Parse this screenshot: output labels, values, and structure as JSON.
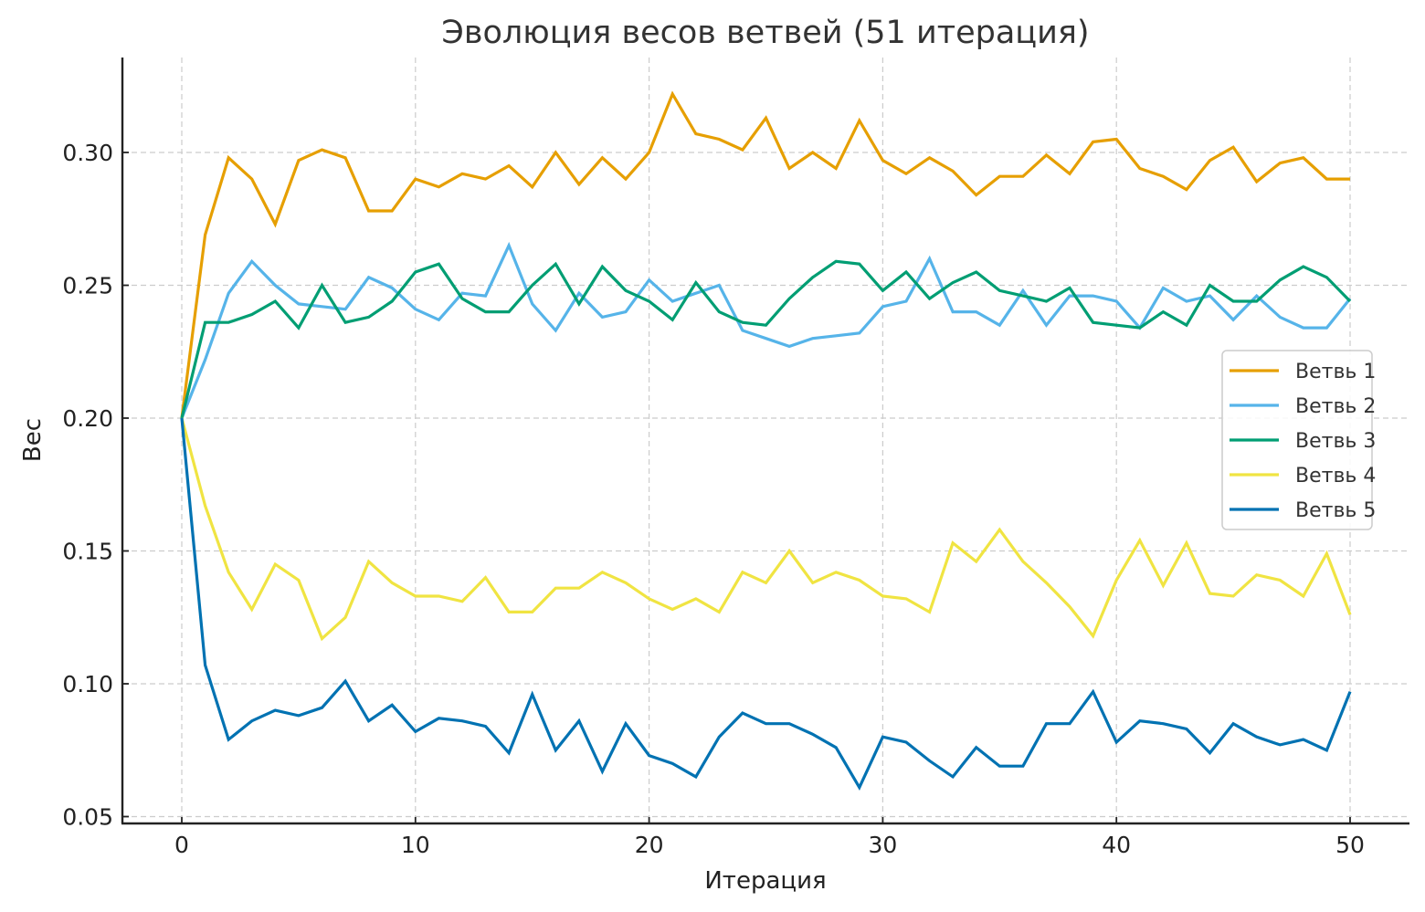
{
  "chart_data": {
    "type": "line",
    "title": "Эволюция весов ветвей (51 итерация)",
    "xlabel": "Итерация",
    "ylabel": "Вес",
    "xlim": [
      -2.5,
      52.5
    ],
    "ylim": [
      0.048,
      0.331
    ],
    "xticks": [
      0,
      10,
      20,
      30,
      40,
      50
    ],
    "xtick_labels": [
      "0",
      "10",
      "20",
      "30",
      "40",
      "50"
    ],
    "yticks": [
      0.05,
      0.1,
      0.15,
      0.2,
      0.25,
      0.3
    ],
    "ytick_labels": [
      "0.05",
      "0.10",
      "0.15",
      "0.20",
      "0.25",
      "0.30"
    ],
    "grid": true,
    "legend_position": "center right",
    "x": [
      0,
      1,
      2,
      3,
      4,
      5,
      6,
      7,
      8,
      9,
      10,
      11,
      12,
      13,
      14,
      15,
      16,
      17,
      18,
      19,
      20,
      21,
      22,
      23,
      24,
      25,
      26,
      27,
      28,
      29,
      30,
      31,
      32,
      33,
      34,
      35,
      36,
      37,
      38,
      39,
      40,
      41,
      42,
      43,
      44,
      45,
      46,
      47,
      48,
      49,
      50
    ],
    "series": [
      {
        "name": "Ветвь 1",
        "color": "#E69F00",
        "values": [
          0.2,
          0.269,
          0.298,
          0.29,
          0.273,
          0.297,
          0.301,
          0.298,
          0.278,
          0.278,
          0.29,
          0.287,
          0.292,
          0.29,
          0.295,
          0.287,
          0.3,
          0.288,
          0.298,
          0.29,
          0.3,
          0.322,
          0.307,
          0.305,
          0.301,
          0.313,
          0.294,
          0.3,
          0.294,
          0.312,
          0.297,
          0.292,
          0.298,
          0.293,
          0.284,
          0.291,
          0.291,
          0.299,
          0.292,
          0.304,
          0.305,
          0.294,
          0.291,
          0.286,
          0.297,
          0.302,
          0.289,
          0.296,
          0.298,
          0.29,
          0.29
        ]
      },
      {
        "name": "Ветвь 2",
        "color": "#56B4E9",
        "values": [
          0.2,
          0.222,
          0.247,
          0.259,
          0.25,
          0.243,
          0.242,
          0.241,
          0.253,
          0.249,
          0.241,
          0.237,
          0.247,
          0.246,
          0.265,
          0.243,
          0.233,
          0.247,
          0.238,
          0.24,
          0.252,
          0.244,
          0.247,
          0.25,
          0.233,
          0.23,
          0.227,
          0.23,
          0.231,
          0.232,
          0.242,
          0.244,
          0.26,
          0.24,
          0.24,
          0.235,
          0.248,
          0.235,
          0.246,
          0.246,
          0.244,
          0.234,
          0.249,
          0.244,
          0.246,
          0.237,
          0.246,
          0.238,
          0.234,
          0.234,
          0.245
        ]
      },
      {
        "name": "Ветвь 3",
        "color": "#009E73",
        "values": [
          0.2,
          0.236,
          0.236,
          0.239,
          0.244,
          0.234,
          0.25,
          0.236,
          0.238,
          0.244,
          0.255,
          0.258,
          0.245,
          0.24,
          0.24,
          0.25,
          0.258,
          0.243,
          0.257,
          0.248,
          0.244,
          0.237,
          0.251,
          0.24,
          0.236,
          0.235,
          0.245,
          0.253,
          0.259,
          0.258,
          0.248,
          0.255,
          0.245,
          0.251,
          0.255,
          0.248,
          0.246,
          0.244,
          0.249,
          0.236,
          0.235,
          0.234,
          0.24,
          0.235,
          0.25,
          0.244,
          0.244,
          0.252,
          0.257,
          0.253,
          0.244
        ]
      },
      {
        "name": "Ветвь 4",
        "color": "#F0E442",
        "values": [
          0.2,
          0.167,
          0.142,
          0.128,
          0.145,
          0.139,
          0.117,
          0.125,
          0.146,
          0.138,
          0.133,
          0.133,
          0.131,
          0.14,
          0.127,
          0.127,
          0.136,
          0.136,
          0.142,
          0.138,
          0.132,
          0.128,
          0.132,
          0.127,
          0.142,
          0.138,
          0.15,
          0.138,
          0.142,
          0.139,
          0.133,
          0.132,
          0.127,
          0.153,
          0.146,
          0.158,
          0.146,
          0.138,
          0.129,
          0.118,
          0.139,
          0.154,
          0.137,
          0.153,
          0.134,
          0.133,
          0.141,
          0.139,
          0.133,
          0.149,
          0.126
        ]
      },
      {
        "name": "Ветвь 5",
        "color": "#0072B2",
        "values": [
          0.2,
          0.107,
          0.079,
          0.086,
          0.09,
          0.088,
          0.091,
          0.101,
          0.086,
          0.092,
          0.082,
          0.087,
          0.086,
          0.084,
          0.074,
          0.096,
          0.075,
          0.086,
          0.067,
          0.085,
          0.073,
          0.07,
          0.065,
          0.08,
          0.089,
          0.085,
          0.085,
          0.081,
          0.076,
          0.061,
          0.08,
          0.078,
          0.071,
          0.065,
          0.076,
          0.069,
          0.069,
          0.085,
          0.085,
          0.097,
          0.078,
          0.086,
          0.085,
          0.083,
          0.074,
          0.085,
          0.08,
          0.077,
          0.079,
          0.075,
          0.097
        ]
      }
    ]
  }
}
